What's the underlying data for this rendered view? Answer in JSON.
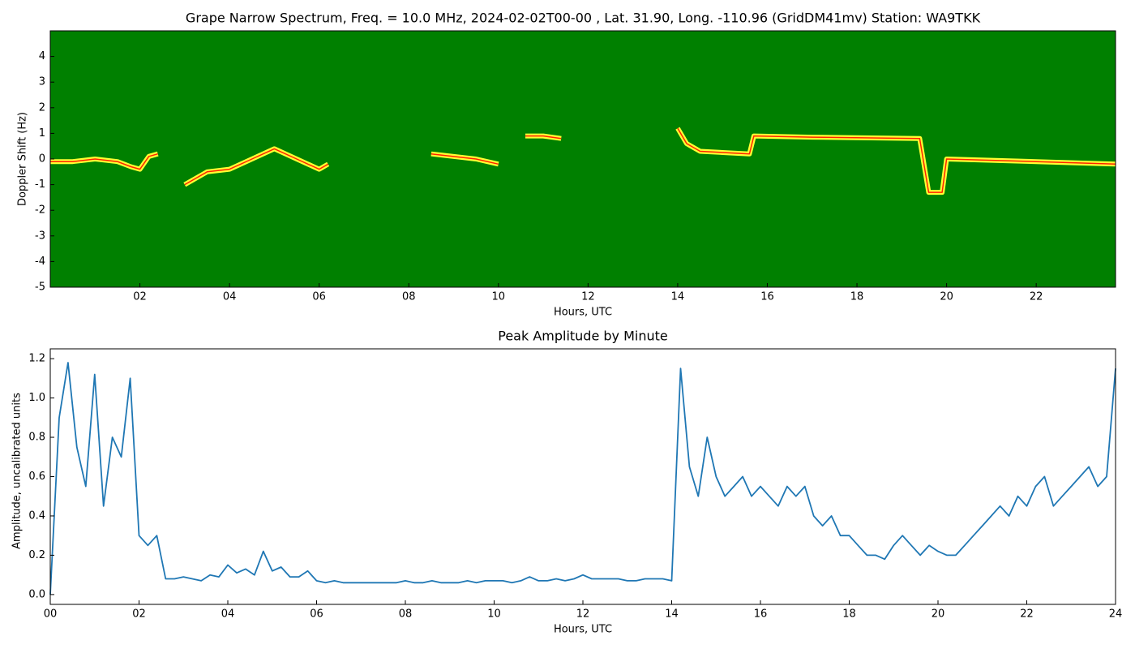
{
  "chart_data": [
    {
      "type": "spectrogram",
      "title": "Grape Narrow Spectrum, Freq. = 10.0 MHz, 2024-02-02T00-00 , Lat.  31.90, Long. -110.96 (GridDM41mv) Station: WA9TKK",
      "x_label": "Hours, UTC",
      "y_label": "Doppler Shift (Hz)",
      "background": "#008000",
      "color": "#ffff33",
      "peak_color": "#ff2200",
      "xlim": [
        0,
        23.77
      ],
      "ylim": [
        -5,
        5
      ],
      "xticks": [
        {
          "value": 2,
          "label": "02"
        },
        {
          "value": 4,
          "label": "04"
        },
        {
          "value": 6,
          "label": "06"
        },
        {
          "value": 8,
          "label": "08"
        },
        10,
        12,
        14,
        16,
        18,
        20,
        22
      ],
      "yticks": [
        -5,
        -4,
        -3,
        -2,
        -1,
        0,
        1,
        2,
        3,
        4
      ],
      "x": [
        0,
        0.5,
        1.0,
        1.5,
        1.8,
        2.0,
        2.2,
        2.4,
        2.8,
        3.0,
        3.5,
        4.0,
        4.5,
        5.0,
        5.5,
        6.0,
        6.2,
        7.0,
        8.5,
        9.5,
        10.0,
        10.3,
        10.6,
        11.0,
        11.4,
        12.5,
        14.0,
        14.2,
        14.5,
        15.6,
        15.7,
        17.0,
        19.4,
        19.6,
        19.9,
        20.0,
        22.0,
        23.77
      ],
      "values": [
        -0.1,
        -0.1,
        0.0,
        -0.1,
        -0.3,
        -0.4,
        0.1,
        0.2,
        null,
        -1.0,
        -0.5,
        -0.4,
        0.0,
        0.4,
        0.0,
        -0.4,
        -0.2,
        null,
        0.2,
        0.0,
        -0.2,
        null,
        0.9,
        0.9,
        0.8,
        null,
        1.2,
        0.6,
        0.3,
        0.2,
        0.9,
        0.85,
        0.8,
        -1.3,
        -1.3,
        0.0,
        -0.1,
        -0.2
      ]
    },
    {
      "type": "line",
      "title": "Peak Amplitude by Minute",
      "x_label": "Hours, UTC",
      "y_label": "Amplitude, uncalibrated units",
      "color": "#1f77b4",
      "xlim": [
        0,
        24
      ],
      "ylim": [
        -0.05,
        1.25
      ],
      "xticks": [
        {
          "value": 0,
          "label": "00"
        },
        {
          "value": 2,
          "label": "02"
        },
        {
          "value": 4,
          "label": "04"
        },
        {
          "value": 6,
          "label": "06"
        },
        {
          "value": 8,
          "label": "08"
        },
        10,
        12,
        14,
        16,
        18,
        20,
        22,
        24
      ],
      "yticks": [
        {
          "value": 0,
          "label": "0.0"
        },
        0.2,
        0.4,
        0.6,
        0.8,
        {
          "value": 1,
          "label": "1.0"
        },
        1.2
      ],
      "x": [
        0,
        0.2,
        0.4,
        0.6,
        0.8,
        1,
        1.2,
        1.4,
        1.6,
        1.8,
        2,
        2.2,
        2.4,
        2.6,
        2.8,
        3,
        3.2,
        3.4,
        3.6,
        3.8,
        4,
        4.2,
        4.4,
        4.6,
        4.8,
        5,
        5.2,
        5.4,
        5.6,
        5.8,
        6,
        6.2,
        6.4,
        6.6,
        6.8,
        7,
        7.2,
        7.4,
        7.6,
        7.8,
        8,
        8.2,
        8.4,
        8.6,
        8.8,
        9,
        9.2,
        9.4,
        9.6,
        9.8,
        10,
        10.2,
        10.4,
        10.6,
        10.8,
        11,
        11.2,
        11.4,
        11.6,
        11.8,
        12,
        12.2,
        12.4,
        12.6,
        12.8,
        13,
        13.2,
        13.4,
        13.6,
        13.8,
        14,
        14.2,
        14.4,
        14.6,
        14.8,
        15,
        15.2,
        15.4,
        15.6,
        15.8,
        16,
        16.2,
        16.4,
        16.6,
        16.8,
        17,
        17.2,
        17.4,
        17.6,
        17.8,
        18,
        18.2,
        18.4,
        18.6,
        18.8,
        19,
        19.2,
        19.4,
        19.6,
        19.8,
        20,
        20.2,
        20.4,
        20.6,
        20.8,
        21,
        21.2,
        21.4,
        21.6,
        21.8,
        22,
        22.2,
        22.4,
        22.6,
        22.8,
        23,
        23.2,
        23.4,
        23.6,
        23.8,
        24
      ],
      "values": [
        0.0,
        0.9,
        1.18,
        0.75,
        0.55,
        1.12,
        0.45,
        0.8,
        0.7,
        1.1,
        0.3,
        0.25,
        0.3,
        0.08,
        0.08,
        0.09,
        0.08,
        0.07,
        0.1,
        0.09,
        0.15,
        0.11,
        0.13,
        0.1,
        0.22,
        0.12,
        0.14,
        0.09,
        0.09,
        0.12,
        0.07,
        0.06,
        0.07,
        0.06,
        0.06,
        0.06,
        0.06,
        0.06,
        0.06,
        0.06,
        0.07,
        0.06,
        0.06,
        0.07,
        0.06,
        0.06,
        0.06,
        0.07,
        0.06,
        0.07,
        0.07,
        0.07,
        0.06,
        0.07,
        0.09,
        0.07,
        0.07,
        0.08,
        0.07,
        0.08,
        0.1,
        0.08,
        0.08,
        0.08,
        0.08,
        0.07,
        0.07,
        0.08,
        0.08,
        0.08,
        0.07,
        1.15,
        0.65,
        0.5,
        0.8,
        0.6,
        0.5,
        0.55,
        0.6,
        0.5,
        0.55,
        0.5,
        0.45,
        0.55,
        0.5,
        0.55,
        0.4,
        0.35,
        0.4,
        0.3,
        0.3,
        0.25,
        0.2,
        0.2,
        0.18,
        0.25,
        0.3,
        0.25,
        0.2,
        0.25,
        0.22,
        0.2,
        0.2,
        0.25,
        0.3,
        0.35,
        0.4,
        0.45,
        0.4,
        0.5,
        0.45,
        0.55,
        0.6,
        0.45,
        0.5,
        0.55,
        0.6,
        0.65,
        0.55,
        0.6,
        1.15
      ]
    }
  ]
}
